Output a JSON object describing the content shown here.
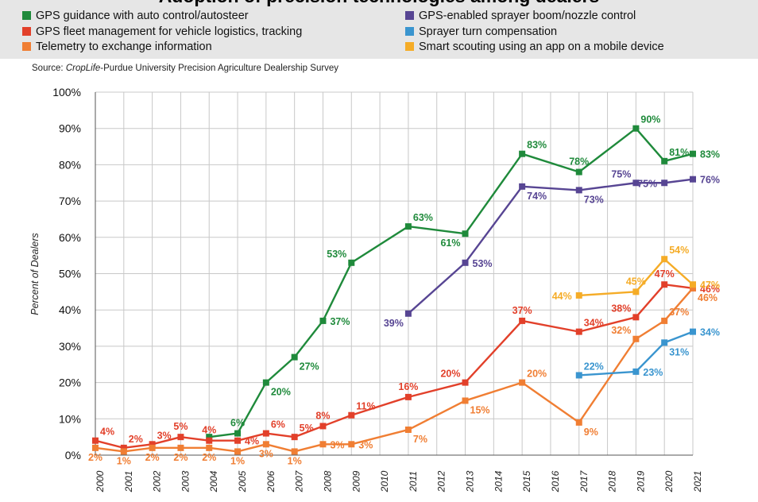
{
  "title": "Adoption of precision technologies among dealers",
  "source": {
    "prefix": "Source: ",
    "italic": "CropLife",
    "suffix": "-Purdue University Precision Agriculture Dealership Survey"
  },
  "legend": [
    {
      "label": "GPS guidance with auto control/autosteer",
      "color": "#1f8a3b"
    },
    {
      "label": "GPS fleet management for vehicle logistics, tracking",
      "color": "#e2402a"
    },
    {
      "label": "Telemetry to exchange information",
      "color": "#f07e33"
    },
    {
      "label": "GPS-enabled sprayer boom/nozzle control",
      "color": "#574593"
    },
    {
      "label": "Sprayer turn compensation",
      "color": "#3a95cf"
    },
    {
      "label": "Smart scouting using an app on a mobile device",
      "color": "#f5ac27"
    }
  ],
  "chart_data": {
    "type": "line",
    "categories": [
      "2000",
      "2001",
      "2002",
      "2003",
      "2004",
      "2005",
      "2006",
      "2007",
      "2008",
      "2009",
      "2010",
      "2011",
      "2012",
      "2013",
      "2014",
      "2015",
      "2016",
      "2017",
      "2018",
      "2019",
      "2020",
      "2021"
    ],
    "ylabel": "Percent of Dealers",
    "ylim": [
      0,
      100
    ],
    "yticks": [
      "0%",
      "10%",
      "20%",
      "30%",
      "40%",
      "50%",
      "60%",
      "70%",
      "80%",
      "90%",
      "100%"
    ],
    "grid": true,
    "series": [
      {
        "name": "GPS guidance with auto control/autosteer",
        "color": "#1f8a3b",
        "labelColor": "#1f8a3b",
        "points": [
          [
            "2004",
            5,
            "",
            "none"
          ],
          [
            "2005",
            6,
            "6%",
            "n"
          ],
          [
            "2006",
            20,
            "20%",
            "se"
          ],
          [
            "2007",
            27,
            "27%",
            "se"
          ],
          [
            "2008",
            37,
            "37%",
            "e"
          ],
          [
            "2009",
            53,
            "53%",
            "nw"
          ],
          [
            "2011",
            63,
            "63%",
            "ne"
          ],
          [
            "2013",
            61,
            "61%",
            "sw"
          ],
          [
            "2015",
            83,
            "83%",
            "ne"
          ],
          [
            "2017",
            78,
            "78%",
            "n"
          ],
          [
            "2019",
            90,
            "90%",
            "ne"
          ],
          [
            "2020",
            81,
            "81%",
            "ne"
          ],
          [
            "2021",
            83,
            "83%",
            "e"
          ]
        ]
      },
      {
        "name": "GPS-enabled sprayer boom/nozzle control",
        "color": "#574593",
        "labelColor": "#574593",
        "points": [
          [
            "2011",
            39,
            "39%",
            "sw"
          ],
          [
            "2013",
            53,
            "53%",
            "e"
          ],
          [
            "2015",
            74,
            "74%",
            "se"
          ],
          [
            "2017",
            73,
            "73%",
            "se"
          ],
          [
            "2019",
            75,
            "75%",
            "nw"
          ],
          [
            "2020",
            75,
            "75%",
            "w"
          ],
          [
            "2021",
            76,
            "76%",
            "e"
          ]
        ]
      },
      {
        "name": "GPS fleet management for vehicle logistics, tracking",
        "color": "#e2402a",
        "labelColor": "#e2402a",
        "points": [
          [
            "2000",
            4,
            "4%",
            "ne"
          ],
          [
            "2001",
            2,
            "2%",
            "ne"
          ],
          [
            "2002",
            3,
            "3%",
            "ne"
          ],
          [
            "2003",
            5,
            "5%",
            "n"
          ],
          [
            "2004",
            4,
            "4%",
            "n"
          ],
          [
            "2005",
            4,
            "4%",
            "e"
          ],
          [
            "2006",
            6,
            "6%",
            "ne"
          ],
          [
            "2007",
            5,
            "5%",
            "ne"
          ],
          [
            "2008",
            8,
            "8%",
            "n"
          ],
          [
            "2009",
            11,
            "11%",
            "ne"
          ],
          [
            "2011",
            16,
            "16%",
            "n"
          ],
          [
            "2013",
            20,
            "20%",
            "nw"
          ],
          [
            "2015",
            37,
            "37%",
            "n"
          ],
          [
            "2017",
            34,
            "34%",
            "ne"
          ],
          [
            "2019",
            38,
            "38%",
            "nw"
          ],
          [
            "2020",
            47,
            "47%",
            "n"
          ],
          [
            "2021",
            46,
            "46%",
            "e"
          ]
        ]
      },
      {
        "name": "Telemetry to exchange information",
        "color": "#f07e33",
        "labelColor": "#f07e33",
        "points": [
          [
            "2000",
            2,
            "2%",
            "s"
          ],
          [
            "2001",
            1,
            "1%",
            "s"
          ],
          [
            "2002",
            2,
            "2%",
            "s"
          ],
          [
            "2003",
            2,
            "2%",
            "s"
          ],
          [
            "2004",
            2,
            "2%",
            "s"
          ],
          [
            "2005",
            1,
            "1%",
            "s"
          ],
          [
            "2006",
            3,
            "3%",
            "s"
          ],
          [
            "2007",
            1,
            "1%",
            "s"
          ],
          [
            "2008",
            3,
            "3%",
            "e"
          ],
          [
            "2009",
            3,
            "3%",
            "e"
          ],
          [
            "2011",
            7,
            "7%",
            "se"
          ],
          [
            "2013",
            15,
            "15%",
            "se"
          ],
          [
            "2015",
            20,
            "20%",
            "ne"
          ],
          [
            "2017",
            9,
            "9%",
            "se"
          ],
          [
            "2019",
            32,
            "32%",
            "nw"
          ],
          [
            "2020",
            37,
            "37%",
            "ne"
          ],
          [
            "2021",
            46,
            "46%",
            "se"
          ]
        ]
      },
      {
        "name": "Sprayer turn compensation",
        "color": "#3a95cf",
        "labelColor": "#3a95cf",
        "points": [
          [
            "2017",
            22,
            "22%",
            "ne"
          ],
          [
            "2019",
            23,
            "23%",
            "e"
          ],
          [
            "2020",
            31,
            "31%",
            "se"
          ],
          [
            "2021",
            34,
            "34%",
            "e"
          ]
        ]
      },
      {
        "name": "Smart scouting using an app on a mobile device",
        "color": "#f5ac27",
        "labelColor": "#f5ac27",
        "points": [
          [
            "2017",
            44,
            "44%",
            "w"
          ],
          [
            "2019",
            45,
            "45%",
            "n"
          ],
          [
            "2020",
            54,
            "54%",
            "ne"
          ],
          [
            "2021",
            47,
            "47%",
            "e"
          ]
        ]
      }
    ]
  }
}
